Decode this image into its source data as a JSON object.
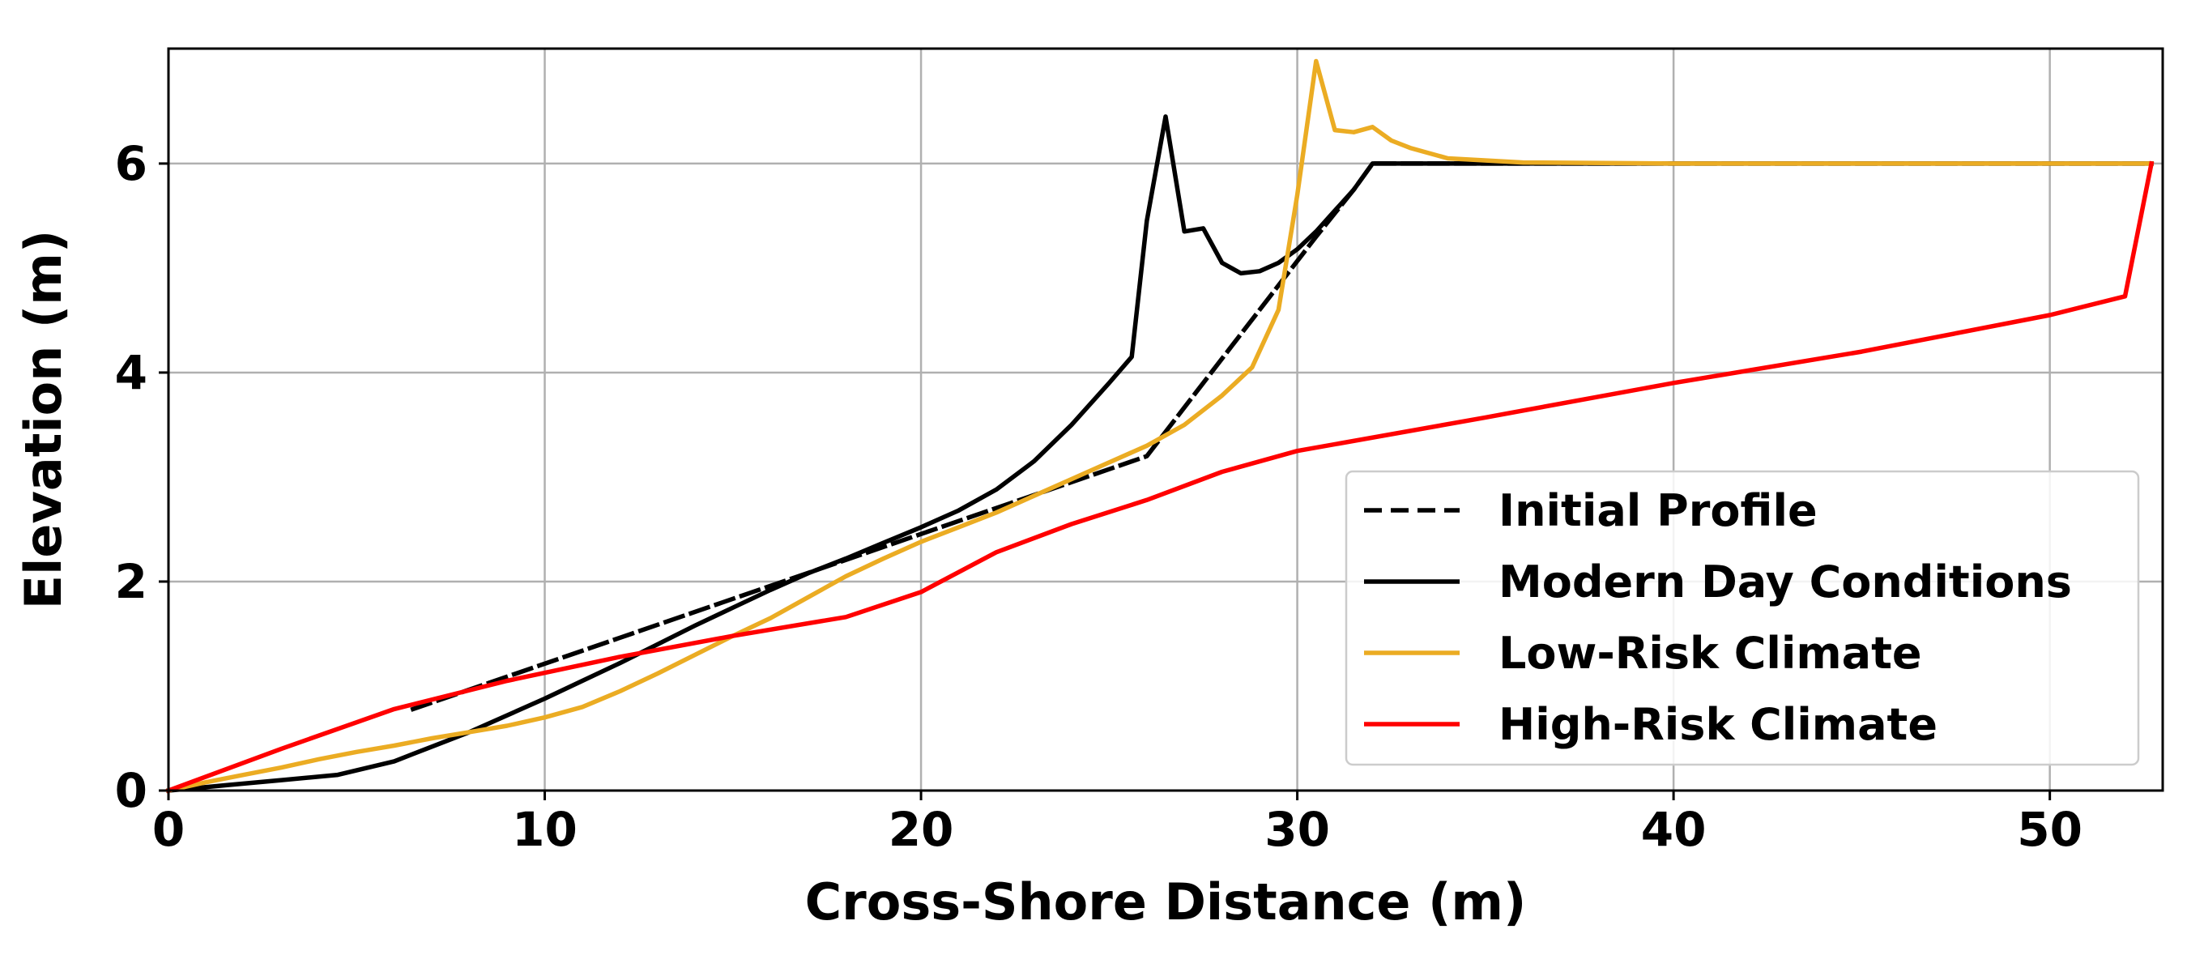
{
  "chart_data": {
    "type": "line",
    "title": "",
    "xlabel": "Cross-Shore Distance (m)",
    "ylabel": "Elevation (m)",
    "xlim": [
      0,
      53
    ],
    "ylim": [
      0,
      7.1
    ],
    "xticks": [
      0,
      10,
      20,
      30,
      40,
      50
    ],
    "yticks": [
      0,
      2,
      4,
      6
    ],
    "grid": true,
    "legend_position": "lower-right",
    "series": [
      {
        "name": "Initial Profile",
        "color": "#000000",
        "dash": "dashed",
        "x": [
          6.5,
          26.0,
          27.5,
          29.0,
          30.5,
          31.5,
          32.0,
          52.7
        ],
        "y": [
          0.78,
          3.2,
          3.9,
          4.6,
          5.3,
          5.75,
          6.0,
          6.0
        ]
      },
      {
        "name": "Modern Day Conditions",
        "color": "#000000",
        "dash": "solid",
        "x": [
          0,
          1.5,
          3,
          4.5,
          6,
          7,
          8,
          9,
          10,
          11,
          12,
          13,
          14,
          15,
          16,
          17,
          18,
          19,
          20,
          21,
          22,
          23,
          24,
          25,
          25.6,
          26.0,
          26.5,
          27.0,
          27.5,
          28.0,
          28.5,
          29.0,
          29.5,
          30.0,
          30.5,
          31.0,
          31.5,
          32.0,
          33,
          35,
          40,
          45,
          52.7
        ],
        "y": [
          0,
          0.05,
          0.1,
          0.15,
          0.28,
          0.42,
          0.56,
          0.72,
          0.88,
          1.05,
          1.22,
          1.4,
          1.58,
          1.75,
          1.92,
          2.08,
          2.22,
          2.37,
          2.52,
          2.68,
          2.88,
          3.15,
          3.5,
          3.9,
          4.15,
          5.45,
          6.45,
          5.35,
          5.38,
          5.05,
          4.95,
          4.97,
          5.05,
          5.18,
          5.35,
          5.55,
          5.75,
          6.0,
          6.0,
          6.0,
          6.0,
          6.0,
          6.0
        ]
      },
      {
        "name": "Low-Risk Climate",
        "color": "#EBAC23",
        "dash": "solid",
        "x": [
          0,
          1,
          2,
          3,
          4,
          5,
          6,
          7,
          8,
          9,
          10,
          11,
          12,
          13,
          14,
          15,
          16,
          17,
          18,
          19,
          20,
          21,
          22,
          23,
          24,
          25,
          26,
          27,
          28,
          28.8,
          29.5,
          30.0,
          30.5,
          31.0,
          31.5,
          32.0,
          32.5,
          33.0,
          34.0,
          36.0,
          40.0,
          45.0,
          52.7
        ],
        "y": [
          0,
          0.08,
          0.15,
          0.22,
          0.3,
          0.37,
          0.43,
          0.5,
          0.56,
          0.62,
          0.7,
          0.8,
          0.95,
          1.12,
          1.3,
          1.48,
          1.65,
          1.85,
          2.05,
          2.22,
          2.38,
          2.52,
          2.66,
          2.82,
          2.98,
          3.14,
          3.3,
          3.5,
          3.78,
          4.05,
          4.6,
          5.7,
          6.98,
          6.32,
          6.3,
          6.35,
          6.22,
          6.15,
          6.05,
          6.01,
          6.0,
          6.0,
          6.0
        ]
      },
      {
        "name": "High-Risk Climate",
        "color": "#FF0000",
        "dash": "solid",
        "x": [
          0,
          3,
          6,
          9,
          12,
          15,
          18,
          20,
          22,
          24,
          26,
          28,
          30,
          35,
          40,
          45,
          50,
          52.0,
          52.7
        ],
        "y": [
          0,
          0.4,
          0.78,
          1.05,
          1.28,
          1.48,
          1.66,
          1.9,
          2.28,
          2.55,
          2.78,
          3.05,
          3.25,
          3.57,
          3.9,
          4.2,
          4.55,
          4.73,
          6.0
        ]
      }
    ]
  }
}
